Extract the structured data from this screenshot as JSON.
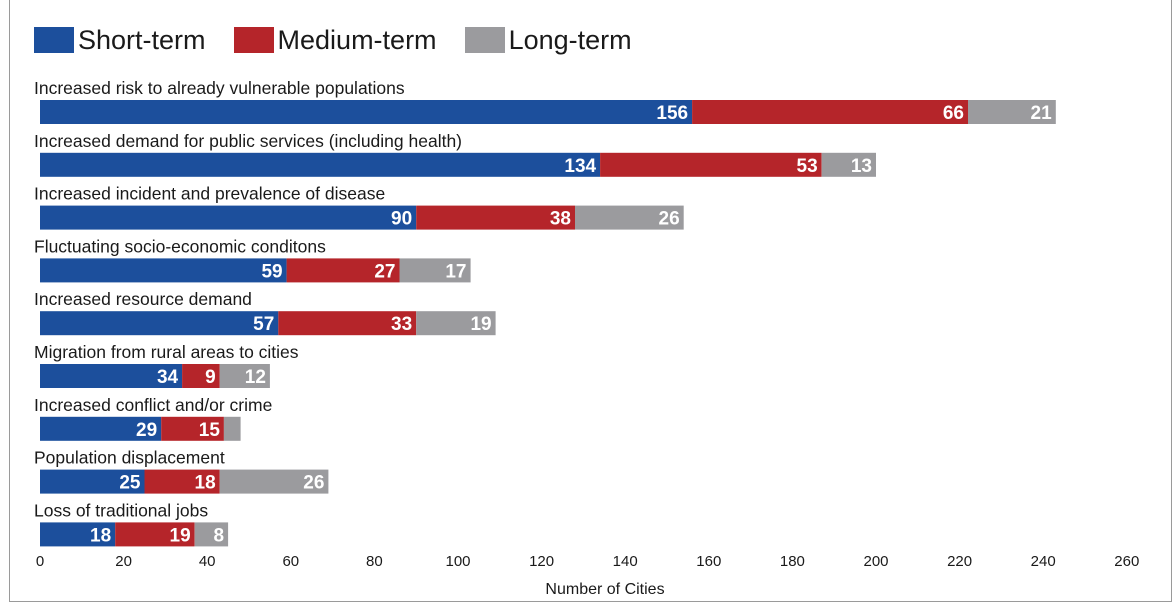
{
  "chart_data": {
    "type": "bar",
    "orientation": "horizontal",
    "stacked": true,
    "categories": [
      "Increased risk to already vulnerable populations",
      "Increased demand for public services (including health)",
      "Increased incident and prevalence of disease",
      "Fluctuating socio-economic conditons",
      "Increased resource demand",
      "Migration from rural areas to cities",
      "Increased conflict and/or crime",
      "Population displacement",
      "Loss of traditional jobs"
    ],
    "series": [
      {
        "name": "Short-term",
        "color": "#1c4f9c",
        "values": [
          156,
          134,
          90,
          59,
          57,
          34,
          29,
          25,
          18
        ]
      },
      {
        "name": "Medium-term",
        "color": "#b5252a",
        "values": [
          66,
          53,
          38,
          27,
          33,
          9,
          15,
          18,
          19
        ]
      },
      {
        "name": "Long-term",
        "color": "#9b9b9e",
        "values": [
          21,
          13,
          26,
          17,
          19,
          12,
          4,
          26,
          8
        ]
      }
    ],
    "data_labels_shown": [
      [
        true,
        true,
        true,
        true,
        true,
        true,
        true,
        true,
        true
      ],
      [
        true,
        true,
        true,
        true,
        true,
        true,
        true,
        true,
        true
      ],
      [
        true,
        true,
        true,
        true,
        true,
        true,
        false,
        true,
        true
      ]
    ],
    "xlabel": "Number of Cities",
    "ylabel": "",
    "xlim": [
      0,
      260
    ],
    "xticks": [
      0,
      20,
      40,
      60,
      80,
      100,
      120,
      140,
      160,
      180,
      200,
      220,
      240,
      260
    ],
    "legend_position": "top-left",
    "grid": false
  }
}
